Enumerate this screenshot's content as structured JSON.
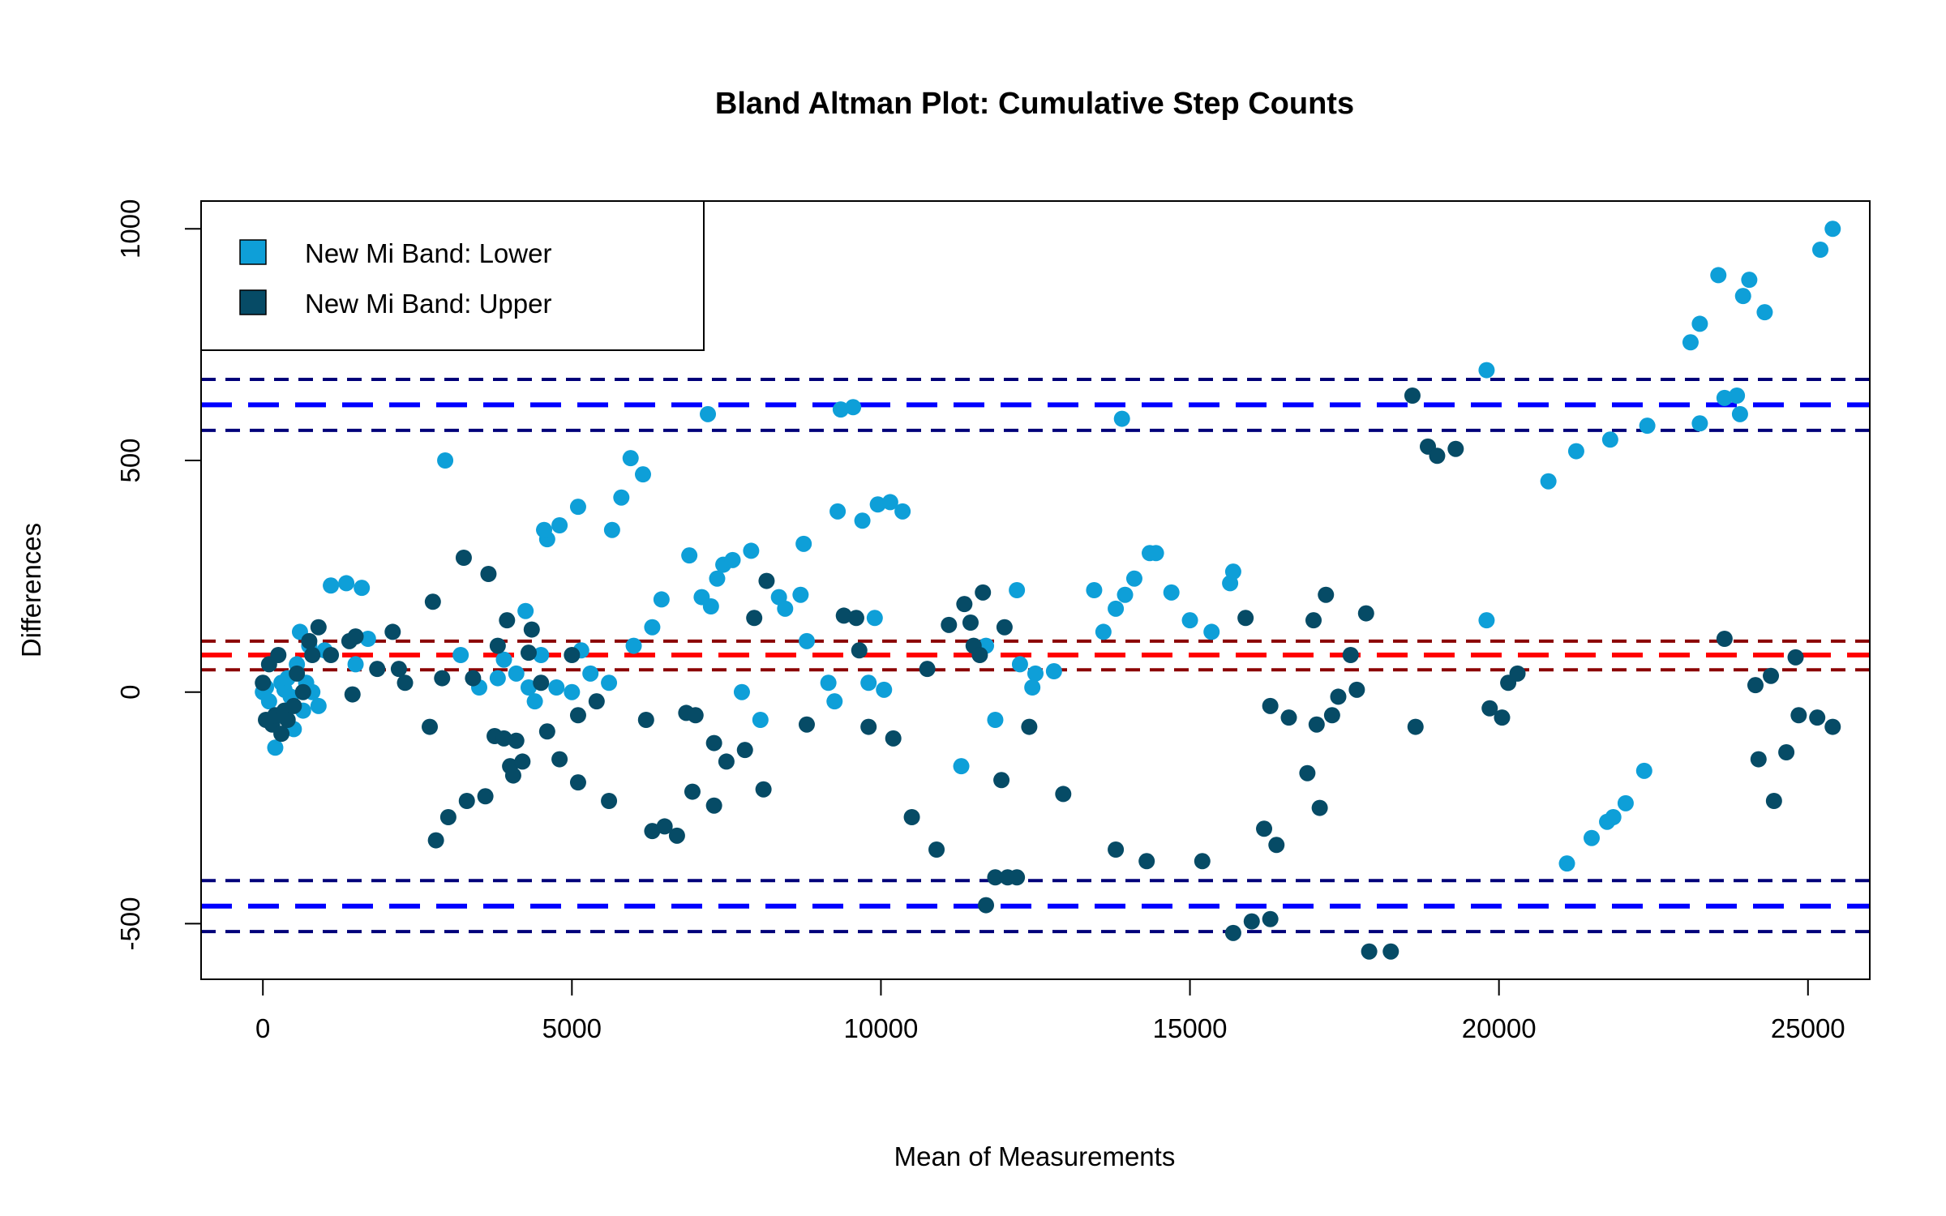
{
  "chart_data": {
    "type": "scatter",
    "title": "Bland Altman Plot: Cumulative Step Counts",
    "xlabel": "Mean of Measurements",
    "ylabel": "Differences",
    "xlim": [
      -1000,
      26000
    ],
    "ylim": [
      -620,
      1060
    ],
    "x_ticks": [
      0,
      5000,
      10000,
      15000,
      20000,
      25000
    ],
    "y_ticks": [
      -500,
      0,
      500,
      1000
    ],
    "legend_position": "top-left",
    "legend": [
      {
        "label": "New Mi Band: Lower",
        "color": "#0e9fd8"
      },
      {
        "label": "New Mi Band: Upper",
        "color": "#064b66"
      }
    ],
    "reference_lines": [
      {
        "y": 620,
        "color": "#0000ff",
        "style": "long-dash"
      },
      {
        "y": 675,
        "color": "#00007a",
        "style": "short-dash"
      },
      {
        "y": 565,
        "color": "#00007a",
        "style": "short-dash"
      },
      {
        "y": 80,
        "color": "#ff0000",
        "style": "long-dash"
      },
      {
        "y": 110,
        "color": "#8b0000",
        "style": "short-dash"
      },
      {
        "y": 48,
        "color": "#8b0000",
        "style": "short-dash"
      },
      {
        "y": -462,
        "color": "#0000ff",
        "style": "long-dash"
      },
      {
        "y": -407,
        "color": "#00007a",
        "style": "short-dash"
      },
      {
        "y": -517,
        "color": "#00007a",
        "style": "short-dash"
      }
    ],
    "series": [
      {
        "name": "New Mi Band: Lower",
        "color": "#0e9fd8",
        "points": [
          [
            0,
            0
          ],
          [
            50,
            10
          ],
          [
            100,
            -20
          ],
          [
            150,
            -60
          ],
          [
            200,
            -120
          ],
          [
            250,
            -50
          ],
          [
            300,
            20
          ],
          [
            350,
            5
          ],
          [
            400,
            30
          ],
          [
            450,
            -10
          ],
          [
            500,
            -80
          ],
          [
            550,
            60
          ],
          [
            600,
            130
          ],
          [
            650,
            -40
          ],
          [
            700,
            20
          ],
          [
            750,
            100
          ],
          [
            800,
            0
          ],
          [
            900,
            -30
          ],
          [
            1000,
            90
          ],
          [
            1100,
            230
          ],
          [
            1350,
            235
          ],
          [
            1600,
            225
          ],
          [
            1700,
            115
          ],
          [
            1500,
            60
          ],
          [
            2950,
            500
          ],
          [
            3200,
            80
          ],
          [
            3500,
            10
          ],
          [
            3800,
            30
          ],
          [
            3900,
            70
          ],
          [
            4100,
            40
          ],
          [
            4250,
            175
          ],
          [
            4300,
            10
          ],
          [
            4400,
            -20
          ],
          [
            4500,
            80
          ],
          [
            4600,
            330
          ],
          [
            4550,
            350
          ],
          [
            4800,
            360
          ],
          [
            4750,
            10
          ],
          [
            5000,
            0
          ],
          [
            5100,
            400
          ],
          [
            5150,
            90
          ],
          [
            5300,
            40
          ],
          [
            5600,
            20
          ],
          [
            5650,
            350
          ],
          [
            5800,
            420
          ],
          [
            5950,
            505
          ],
          [
            6000,
            100
          ],
          [
            6150,
            470
          ],
          [
            6300,
            140
          ],
          [
            6450,
            200
          ],
          [
            6900,
            295
          ],
          [
            7100,
            205
          ],
          [
            7200,
            600
          ],
          [
            7250,
            185
          ],
          [
            7350,
            245
          ],
          [
            7450,
            275
          ],
          [
            7600,
            285
          ],
          [
            7750,
            0
          ],
          [
            7900,
            305
          ],
          [
            8050,
            -60
          ],
          [
            8350,
            205
          ],
          [
            8450,
            180
          ],
          [
            8700,
            210
          ],
          [
            8750,
            320
          ],
          [
            8800,
            110
          ],
          [
            9150,
            20
          ],
          [
            9250,
            -20
          ],
          [
            9300,
            390
          ],
          [
            9350,
            610
          ],
          [
            9550,
            615
          ],
          [
            9700,
            370
          ],
          [
            9800,
            20
          ],
          [
            9950,
            405
          ],
          [
            9900,
            160
          ],
          [
            10050,
            5
          ],
          [
            10150,
            410
          ],
          [
            10350,
            390
          ],
          [
            11300,
            -160
          ],
          [
            11700,
            100
          ],
          [
            11850,
            -60
          ],
          [
            12200,
            220
          ],
          [
            12250,
            60
          ],
          [
            12450,
            10
          ],
          [
            12500,
            40
          ],
          [
            12800,
            45
          ],
          [
            13450,
            220
          ],
          [
            13600,
            130
          ],
          [
            13800,
            180
          ],
          [
            13900,
            590
          ],
          [
            13950,
            210
          ],
          [
            14100,
            245
          ],
          [
            14350,
            300
          ],
          [
            14450,
            300
          ],
          [
            14700,
            215
          ],
          [
            15000,
            155
          ],
          [
            15350,
            130
          ],
          [
            15650,
            235
          ],
          [
            15700,
            260
          ],
          [
            19800,
            695
          ],
          [
            19800,
            155
          ],
          [
            20800,
            455
          ],
          [
            21250,
            520
          ],
          [
            21100,
            -370
          ],
          [
            21500,
            -315
          ],
          [
            21750,
            -280
          ],
          [
            21850,
            -270
          ],
          [
            22050,
            -240
          ],
          [
            22350,
            -170
          ],
          [
            21800,
            545
          ],
          [
            22400,
            575
          ],
          [
            23100,
            755
          ],
          [
            23250,
            795
          ],
          [
            23250,
            580
          ],
          [
            23550,
            900
          ],
          [
            23650,
            635
          ],
          [
            23850,
            640
          ],
          [
            23900,
            600
          ],
          [
            23950,
            855
          ],
          [
            24050,
            890
          ],
          [
            24300,
            820
          ],
          [
            25200,
            955
          ],
          [
            25400,
            1000
          ]
        ]
      },
      {
        "name": "New Mi Band: Upper",
        "color": "#064b66",
        "points": [
          [
            0,
            20
          ],
          [
            50,
            -60
          ],
          [
            100,
            60
          ],
          [
            150,
            -70
          ],
          [
            200,
            -50
          ],
          [
            250,
            80
          ],
          [
            300,
            -90
          ],
          [
            350,
            -40
          ],
          [
            400,
            -60
          ],
          [
            500,
            -30
          ],
          [
            550,
            40
          ],
          [
            650,
            0
          ],
          [
            750,
            110
          ],
          [
            800,
            80
          ],
          [
            900,
            140
          ],
          [
            1100,
            80
          ],
          [
            1400,
            110
          ],
          [
            1450,
            -5
          ],
          [
            1500,
            120
          ],
          [
            1850,
            50
          ],
          [
            2100,
            130
          ],
          [
            2200,
            50
          ],
          [
            2300,
            20
          ],
          [
            2700,
            -75
          ],
          [
            2750,
            195
          ],
          [
            2800,
            -320
          ],
          [
            2900,
            30
          ],
          [
            3000,
            -270
          ],
          [
            3250,
            290
          ],
          [
            3300,
            -235
          ],
          [
            3400,
            30
          ],
          [
            3600,
            -225
          ],
          [
            3650,
            255
          ],
          [
            3750,
            -95
          ],
          [
            3800,
            100
          ],
          [
            3900,
            -100
          ],
          [
            3950,
            155
          ],
          [
            4000,
            -160
          ],
          [
            4050,
            -180
          ],
          [
            4100,
            -105
          ],
          [
            4200,
            -150
          ],
          [
            4300,
            85
          ],
          [
            4350,
            135
          ],
          [
            4500,
            20
          ],
          [
            4600,
            -85
          ],
          [
            4800,
            -145
          ],
          [
            5000,
            80
          ],
          [
            5100,
            -50
          ],
          [
            5100,
            -195
          ],
          [
            5400,
            -20
          ],
          [
            5600,
            -235
          ],
          [
            6200,
            -60
          ],
          [
            6300,
            -300
          ],
          [
            6500,
            -290
          ],
          [
            6700,
            -310
          ],
          [
            6850,
            -45
          ],
          [
            6950,
            -215
          ],
          [
            7000,
            -50
          ],
          [
            7300,
            -110
          ],
          [
            7300,
            -245
          ],
          [
            7500,
            -150
          ],
          [
            7800,
            -125
          ],
          [
            7950,
            160
          ],
          [
            8100,
            -210
          ],
          [
            8150,
            240
          ],
          [
            8800,
            -70
          ],
          [
            9400,
            165
          ],
          [
            9600,
            160
          ],
          [
            9650,
            90
          ],
          [
            9800,
            -75
          ],
          [
            10200,
            -100
          ],
          [
            10500,
            -270
          ],
          [
            10750,
            50
          ],
          [
            10900,
            -340
          ],
          [
            11100,
            145
          ],
          [
            11350,
            190
          ],
          [
            11450,
            150
          ],
          [
            11500,
            100
          ],
          [
            11600,
            80
          ],
          [
            11650,
            215
          ],
          [
            11700,
            -460
          ],
          [
            11850,
            -400
          ],
          [
            11950,
            -190
          ],
          [
            12000,
            140
          ],
          [
            12050,
            -400
          ],
          [
            12200,
            -400
          ],
          [
            12400,
            -75
          ],
          [
            12950,
            -220
          ],
          [
            13800,
            -340
          ],
          [
            14300,
            -365
          ],
          [
            15200,
            -365
          ],
          [
            15700,
            -520
          ],
          [
            15900,
            160
          ],
          [
            16000,
            -495
          ],
          [
            16200,
            -295
          ],
          [
            16300,
            -490
          ],
          [
            16300,
            -30
          ],
          [
            16400,
            -330
          ],
          [
            16600,
            -55
          ],
          [
            16900,
            -175
          ],
          [
            17000,
            155
          ],
          [
            17050,
            -70
          ],
          [
            17100,
            -250
          ],
          [
            17200,
            210
          ],
          [
            17300,
            -50
          ],
          [
            17400,
            -10
          ],
          [
            17600,
            80
          ],
          [
            17700,
            5
          ],
          [
            17850,
            170
          ],
          [
            17900,
            -560
          ],
          [
            18250,
            -560
          ],
          [
            18600,
            640
          ],
          [
            18650,
            -75
          ],
          [
            18850,
            530
          ],
          [
            19000,
            510
          ],
          [
            19300,
            525
          ],
          [
            19850,
            -35
          ],
          [
            20050,
            -55
          ],
          [
            20150,
            20
          ],
          [
            20300,
            40
          ],
          [
            23650,
            115
          ],
          [
            24150,
            15
          ],
          [
            24200,
            -145
          ],
          [
            24400,
            35
          ],
          [
            24450,
            -235
          ],
          [
            24650,
            -130
          ],
          [
            24800,
            75
          ],
          [
            24850,
            -50
          ],
          [
            25150,
            -55
          ],
          [
            25400,
            -75
          ]
        ]
      }
    ]
  }
}
